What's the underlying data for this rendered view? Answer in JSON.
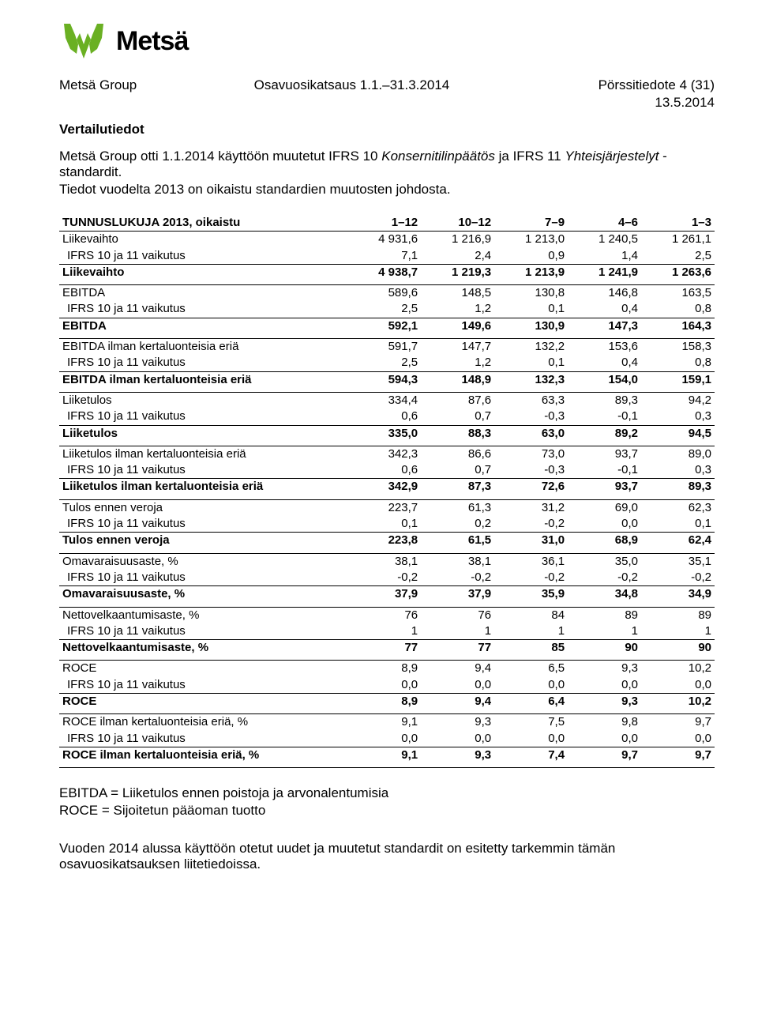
{
  "logo": {
    "brand_word": "Metsä",
    "color": "#6ab023"
  },
  "header": {
    "left": "Metsä Group",
    "mid": "Osavuosikatsaus 1.1.–31.3.2014",
    "right": "Pörssitiedote 4 (31)",
    "date": "13.5.2014"
  },
  "section_title": "Vertailutiedot",
  "intro_line1_a": "Metsä Group otti 1.1.2014 käyttöön muutetut IFRS 10 ",
  "intro_line1_ital1": "Konsernitilinpäätös",
  "intro_line1_b": " ja IFRS 11 ",
  "intro_line1_ital2": "Yhteisjärjestelyt",
  "intro_line1_c": " -standardit.",
  "intro_line2": "Tiedot vuodelta 2013 on oikaistu standardien muutosten johdosta.",
  "table": {
    "header": [
      "TUNNUSLUKUJA 2013, oikaistu",
      "1–12",
      "10–12",
      "7–9",
      "4–6",
      "1–3"
    ],
    "groups": [
      {
        "rows": [
          {
            "label": "Liikevaihto",
            "vals": [
              "4 931,6",
              "1 216,9",
              "1 213,0",
              "1 240,5",
              "1 261,1"
            ]
          },
          {
            "label": "IFRS 10 ja 11 vaikutus",
            "indent": true,
            "vals": [
              "7,1",
              "2,4",
              "0,9",
              "1,4",
              "2,5"
            ]
          }
        ],
        "total": {
          "label": "Liikevaihto",
          "vals": [
            "4 938,7",
            "1 219,3",
            "1 213,9",
            "1 241,9",
            "1 263,6"
          ]
        }
      },
      {
        "rows": [
          {
            "label": "EBITDA",
            "vals": [
              "589,6",
              "148,5",
              "130,8",
              "146,8",
              "163,5"
            ]
          },
          {
            "label": "IFRS 10 ja 11 vaikutus",
            "indent": true,
            "vals": [
              "2,5",
              "1,2",
              "0,1",
              "0,4",
              "0,8"
            ]
          }
        ],
        "total": {
          "label": "EBITDA",
          "vals": [
            "592,1",
            "149,6",
            "130,9",
            "147,3",
            "164,3"
          ]
        }
      },
      {
        "rows": [
          {
            "label": "EBITDA ilman kertaluonteisia eriä",
            "vals": [
              "591,7",
              "147,7",
              "132,2",
              "153,6",
              "158,3"
            ]
          },
          {
            "label": "IFRS 10 ja 11 vaikutus",
            "indent": true,
            "vals": [
              "2,5",
              "1,2",
              "0,1",
              "0,4",
              "0,8"
            ]
          }
        ],
        "total": {
          "label": "EBITDA ilman kertaluonteisia eriä",
          "vals": [
            "594,3",
            "148,9",
            "132,3",
            "154,0",
            "159,1"
          ]
        }
      },
      {
        "rows": [
          {
            "label": "Liiketulos",
            "vals": [
              "334,4",
              "87,6",
              "63,3",
              "89,3",
              "94,2"
            ]
          },
          {
            "label": "IFRS 10 ja 11 vaikutus",
            "indent": true,
            "vals": [
              "0,6",
              "0,7",
              "-0,3",
              "-0,1",
              "0,3"
            ]
          }
        ],
        "total": {
          "label": "Liiketulos",
          "vals": [
            "335,0",
            "88,3",
            "63,0",
            "89,2",
            "94,5"
          ]
        }
      },
      {
        "rows": [
          {
            "label": "Liiketulos ilman kertaluonteisia eriä",
            "vals": [
              "342,3",
              "86,6",
              "73,0",
              "93,7",
              "89,0"
            ]
          },
          {
            "label": "IFRS 10 ja 11 vaikutus",
            "indent": true,
            "vals": [
              "0,6",
              "0,7",
              "-0,3",
              "-0,1",
              "0,3"
            ]
          }
        ],
        "total": {
          "label": "Liiketulos ilman kertaluonteisia eriä",
          "vals": [
            "342,9",
            "87,3",
            "72,6",
            "93,7",
            "89,3"
          ]
        }
      },
      {
        "rows": [
          {
            "label": "Tulos ennen veroja",
            "vals": [
              "223,7",
              "61,3",
              "31,2",
              "69,0",
              "62,3"
            ]
          },
          {
            "label": "IFRS 10 ja 11 vaikutus",
            "indent": true,
            "vals": [
              "0,1",
              "0,2",
              "-0,2",
              "0,0",
              "0,1"
            ]
          }
        ],
        "total": {
          "label": "Tulos ennen veroja",
          "vals": [
            "223,8",
            "61,5",
            "31,0",
            "68,9",
            "62,4"
          ]
        }
      },
      {
        "rows": [
          {
            "label": "Omavaraisuusaste, %",
            "vals": [
              "38,1",
              "38,1",
              "36,1",
              "35,0",
              "35,1"
            ]
          },
          {
            "label": "IFRS 10 ja 11 vaikutus",
            "indent": true,
            "vals": [
              "-0,2",
              "-0,2",
              "-0,2",
              "-0,2",
              "-0,2"
            ]
          }
        ],
        "total": {
          "label": "Omavaraisuusaste, %",
          "vals": [
            "37,9",
            "37,9",
            "35,9",
            "34,8",
            "34,9"
          ]
        }
      },
      {
        "rows": [
          {
            "label": "Nettovelkaantumisaste, %",
            "vals": [
              "76",
              "76",
              "84",
              "89",
              "89"
            ]
          },
          {
            "label": "IFRS 10 ja 11 vaikutus",
            "indent": true,
            "vals": [
              "1",
              "1",
              "1",
              "1",
              "1"
            ]
          }
        ],
        "total": {
          "label": "Nettovelkaantumisaste, %",
          "vals": [
            "77",
            "77",
            "85",
            "90",
            "90"
          ]
        }
      },
      {
        "rows": [
          {
            "label": "ROCE",
            "vals": [
              "8,9",
              "9,4",
              "6,5",
              "9,3",
              "10,2"
            ]
          },
          {
            "label": "IFRS 10 ja 11 vaikutus",
            "indent": true,
            "vals": [
              "0,0",
              "0,0",
              "0,0",
              "0,0",
              "0,0"
            ]
          }
        ],
        "total": {
          "label": "ROCE",
          "vals": [
            "8,9",
            "9,4",
            "6,4",
            "9,3",
            "10,2"
          ]
        }
      },
      {
        "rows": [
          {
            "label": "ROCE ilman kertaluonteisia eriä, %",
            "vals": [
              "9,1",
              "9,3",
              "7,5",
              "9,8",
              "9,7"
            ]
          },
          {
            "label": "IFRS 10 ja 11 vaikutus",
            "indent": true,
            "vals": [
              "0,0",
              "0,0",
              "0,0",
              "0,0",
              "0,0"
            ]
          }
        ],
        "total": {
          "label": "ROCE ilman kertaluonteisia eriä, %",
          "vals": [
            "9,1",
            "9,3",
            "7,4",
            "9,7",
            "9,7"
          ],
          "last": true
        }
      }
    ]
  },
  "footnotes": [
    "EBITDA = Liiketulos ennen poistoja ja arvonalentumisia",
    "ROCE = Sijoitetun pääoman tuotto"
  ],
  "closing": "Vuoden 2014 alussa käyttöön otetut uudet ja muutetut standardit on esitetty tarkemmin tämän osavuosikatsauksen liitetiedoissa."
}
